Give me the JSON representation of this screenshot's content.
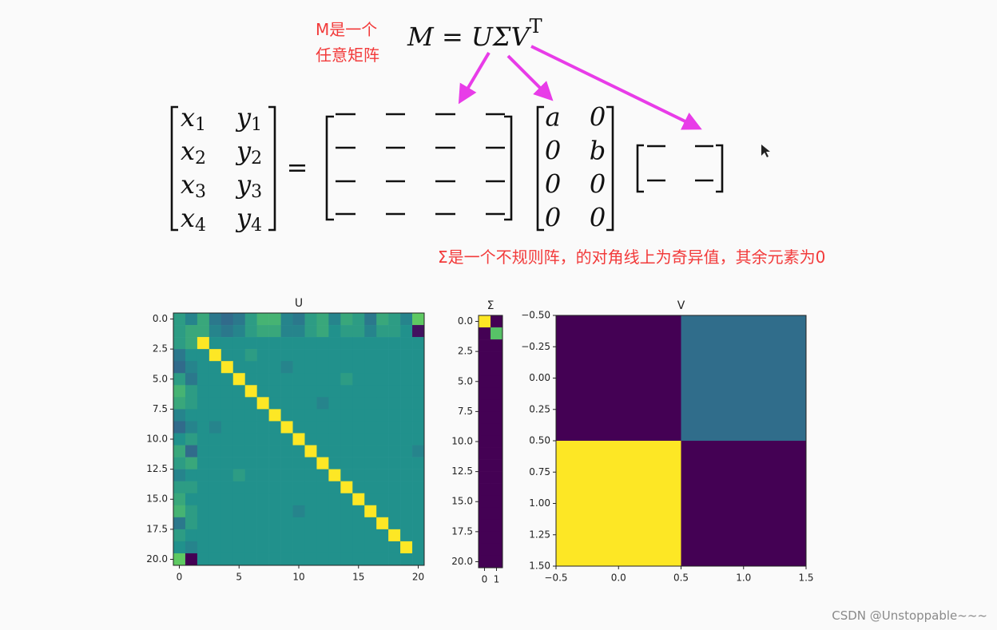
{
  "note": [
    "M是一个",
    "任意矩阵"
  ],
  "formula": {
    "text": "M = UΣV",
    "superscript": "T"
  },
  "equation": {
    "left": [
      [
        {
          "base": "x",
          "sub": "1"
        },
        {
          "base": "y",
          "sub": "1"
        }
      ],
      [
        {
          "base": "x",
          "sub": "2"
        },
        {
          "base": "y",
          "sub": "2"
        }
      ],
      [
        {
          "base": "x",
          "sub": "3"
        },
        {
          "base": "y",
          "sub": "3"
        }
      ],
      [
        {
          "base": "x",
          "sub": "4"
        },
        {
          "base": "y",
          "sub": "4"
        }
      ]
    ],
    "equals": "=",
    "sigma": [
      [
        "a",
        "0"
      ],
      [
        "0",
        "b"
      ],
      [
        "0",
        "0"
      ],
      [
        "0",
        "0"
      ]
    ]
  },
  "annotation": "Σ是一个不规则阵，的对角线上为奇异值，其余元素为0",
  "watermark": "CSDN @Unstoppable~~~",
  "chart_data": [
    {
      "type": "heatmap",
      "title": "U",
      "colormap": "viridis",
      "xlim": [
        -0.5,
        20.5
      ],
      "ylim": [
        20.5,
        -0.5
      ],
      "xticks": [
        0,
        5,
        10,
        15,
        20
      ],
      "yticks": [
        {
          "value": 0,
          "label": "0.0"
        },
        {
          "value": 2.5,
          "label": "2.5"
        },
        {
          "value": 5,
          "label": "5.0"
        },
        {
          "value": 7.5,
          "label": "7.5"
        },
        {
          "value": 10,
          "label": "10.0"
        },
        {
          "value": 12.5,
          "label": "12.5"
        },
        {
          "value": 15,
          "label": "15.0"
        },
        {
          "value": 17.5,
          "label": "17.5"
        },
        {
          "value": 20,
          "label": "20.0"
        }
      ],
      "values": [
        [
          0.1,
          -0.1,
          0.2,
          -0.2,
          -0.3,
          -0.2,
          0.1,
          0.3,
          0.3,
          -0.1,
          -0.2,
          0.1,
          0.2,
          -0.1,
          0.2,
          0.1,
          -0.2,
          0.2,
          0.1,
          -0.1,
          0.5
        ],
        [
          0.1,
          0.2,
          0.2,
          -0.1,
          -0.2,
          -0.1,
          0.1,
          0.2,
          0.2,
          -0.1,
          -0.1,
          0.1,
          0.2,
          0,
          0.1,
          0.1,
          -0.1,
          0.1,
          0.1,
          0,
          -0.9
        ],
        [
          0.1,
          0.2,
          1,
          0,
          0,
          0,
          0,
          0,
          0,
          0,
          0,
          0,
          0,
          0,
          0,
          0,
          0,
          0,
          0,
          0,
          0
        ],
        [
          -0.2,
          0,
          0,
          1,
          0,
          0,
          0.1,
          0,
          0,
          0,
          0,
          0,
          0,
          0,
          0,
          0,
          0,
          0,
          0,
          0,
          0
        ],
        [
          -0.3,
          -0.1,
          0,
          0,
          1,
          0,
          0,
          0,
          0,
          -0.1,
          0,
          0,
          0,
          0,
          0,
          0,
          0,
          0,
          0,
          0,
          0
        ],
        [
          0.1,
          -0.2,
          0,
          0,
          0,
          1,
          0,
          0,
          0,
          0,
          0,
          0,
          0,
          0,
          0.1,
          0,
          0,
          0,
          0,
          0,
          0
        ],
        [
          0.3,
          0.1,
          0,
          0,
          0,
          0,
          1,
          0,
          0,
          0,
          0,
          0,
          0,
          0,
          0,
          0,
          0,
          0,
          0,
          0,
          0
        ],
        [
          0.2,
          0.1,
          0,
          0,
          0,
          0,
          0,
          1,
          0,
          0,
          0,
          0,
          -0.1,
          0,
          0,
          0,
          0,
          0,
          0,
          0,
          0
        ],
        [
          -0.1,
          0,
          0,
          0,
          0,
          0,
          0,
          0,
          1,
          0,
          0,
          0,
          0,
          0,
          0,
          0,
          0,
          0,
          0,
          0,
          0
        ],
        [
          -0.3,
          -0.1,
          0,
          -0.1,
          0,
          0,
          0,
          0,
          0,
          1,
          0,
          0,
          0,
          0,
          0,
          0,
          0,
          0,
          0,
          0,
          0
        ],
        [
          0,
          0.1,
          0,
          0,
          0,
          0,
          0,
          0,
          0,
          0,
          1,
          0,
          0,
          0,
          0,
          0,
          0,
          0,
          0,
          0,
          0
        ],
        [
          0.2,
          -0.3,
          0,
          0,
          0,
          0,
          0,
          0,
          0,
          0,
          0,
          1,
          0,
          0,
          0,
          0,
          0,
          0,
          0,
          0,
          -0.1
        ],
        [
          0.1,
          0.2,
          0,
          0,
          0,
          0,
          0,
          0,
          0,
          0,
          0,
          0,
          1,
          0,
          0,
          0,
          0,
          0,
          0,
          0,
          0
        ],
        [
          -0.1,
          0,
          0,
          0,
          0,
          0.1,
          0,
          0,
          0,
          0,
          0,
          0,
          0,
          1,
          0,
          0,
          0,
          0,
          0,
          0,
          0
        ],
        [
          0.1,
          0.1,
          0,
          0,
          0,
          0,
          0,
          0,
          0,
          0,
          0,
          0,
          0,
          0,
          1,
          0,
          0,
          0,
          0,
          0,
          0
        ],
        [
          0.2,
          0,
          0,
          0,
          0,
          0,
          0,
          0,
          0,
          0,
          0,
          0,
          0,
          0,
          0,
          1,
          0,
          0,
          0,
          0,
          0
        ],
        [
          0.3,
          0.1,
          0,
          0,
          0,
          0,
          0,
          0,
          0,
          0,
          -0.1,
          0,
          0,
          0,
          0,
          0,
          1,
          0,
          0,
          0,
          0
        ],
        [
          -0.2,
          0.1,
          0,
          0,
          0,
          0,
          0,
          0,
          0,
          0,
          0,
          0,
          0,
          0,
          0,
          0,
          0,
          1,
          0,
          0,
          0
        ],
        [
          0.1,
          0,
          0,
          0,
          0,
          0,
          0,
          0,
          0,
          0,
          0,
          0,
          0,
          0,
          0,
          0,
          0,
          0,
          1,
          0,
          0
        ],
        [
          0,
          -0.1,
          0,
          0,
          0,
          0,
          0,
          0,
          0,
          0,
          0,
          0,
          0,
          0,
          0,
          0,
          0,
          0,
          0,
          1,
          0
        ],
        [
          0.5,
          -1,
          0,
          0,
          0,
          0,
          0,
          0,
          0,
          0,
          0,
          0,
          0,
          0,
          0,
          0,
          0,
          0,
          0,
          0,
          0
        ]
      ]
    },
    {
      "type": "heatmap",
      "title": "Σ",
      "colormap": "viridis",
      "xlim": [
        -0.5,
        1.5
      ],
      "ylim": [
        20.5,
        -0.5
      ],
      "xticks": [
        0,
        1
      ],
      "yticks": [
        {
          "value": 0,
          "label": "0.0"
        },
        {
          "value": 2.5,
          "label": "2.5"
        },
        {
          "value": 5,
          "label": "5.0"
        },
        {
          "value": 7.5,
          "label": "7.5"
        },
        {
          "value": 10,
          "label": "10.0"
        },
        {
          "value": 12.5,
          "label": "12.5"
        },
        {
          "value": 15,
          "label": "15.0"
        },
        {
          "value": 17.5,
          "label": "17.5"
        },
        {
          "value": 20,
          "label": "20.0"
        }
      ],
      "values": [
        [
          1,
          0
        ],
        [
          0,
          0.72
        ],
        [
          0,
          0
        ],
        [
          0,
          0
        ],
        [
          0,
          0
        ],
        [
          0,
          0
        ],
        [
          0,
          0
        ],
        [
          0,
          0
        ],
        [
          0,
          0
        ],
        [
          0,
          0
        ],
        [
          0,
          0
        ],
        [
          0,
          0
        ],
        [
          0,
          0
        ],
        [
          0,
          0
        ],
        [
          0,
          0
        ],
        [
          0,
          0
        ],
        [
          0,
          0
        ],
        [
          0,
          0
        ],
        [
          0,
          0
        ],
        [
          0,
          0
        ],
        [
          0,
          0
        ]
      ]
    },
    {
      "type": "heatmap",
      "title": "V",
      "colormap": "viridis",
      "xlim": [
        -0.5,
        1.5
      ],
      "ylim": [
        1.5,
        -0.5
      ],
      "xticks": [
        {
          "value": -0.5,
          "label": "−0.5"
        },
        {
          "value": 0,
          "label": "0.0"
        },
        {
          "value": 0.5,
          "label": "0.5"
        },
        {
          "value": 1,
          "label": "1.0"
        },
        {
          "value": 1.5,
          "label": "1.5"
        }
      ],
      "yticks": [
        {
          "value": -0.5,
          "label": "−0.50"
        },
        {
          "value": -0.25,
          "label": "−0.25"
        },
        {
          "value": 0,
          "label": "0.00"
        },
        {
          "value": 0.25,
          "label": "0.25"
        },
        {
          "value": 0.5,
          "label": "0.50"
        },
        {
          "value": 0.75,
          "label": "0.75"
        },
        {
          "value": 1,
          "label": "1.00"
        },
        {
          "value": 1.25,
          "label": "1.25"
        },
        {
          "value": 1.5,
          "label": "1.50"
        }
      ],
      "values": [
        [
          -0.7,
          -0.2
        ],
        [
          0.7,
          -0.7
        ]
      ]
    }
  ]
}
